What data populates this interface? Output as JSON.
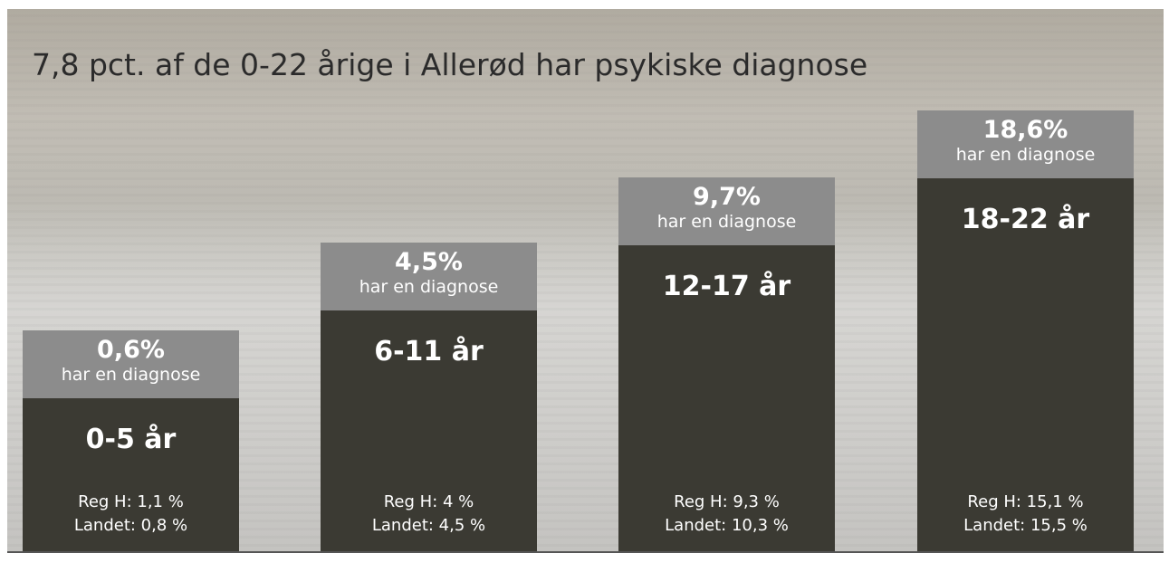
{
  "title": "7,8 pct. af de 0-22 årige i Allerød har psykiske diagnose",
  "groups": [
    {
      "share": "0,6%",
      "caption": "har en diagnose",
      "age": "0-5 år",
      "region": "Reg H: 1,1 %",
      "country": "Landet:  0,8 %"
    },
    {
      "share": "4,5%",
      "caption": "har en diagnose",
      "age": "6-11 år",
      "region": "Reg H: 4 %",
      "country": "Landet:  4,5 %"
    },
    {
      "share": "9,7%",
      "caption": "har en diagnose",
      "age": "12-17 år",
      "region": "Reg H: 9,3 %",
      "country": "Landet:  10,3 %"
    },
    {
      "share": "18,6%",
      "caption": "har en diagnose",
      "age": "18-22 år",
      "region": "Reg H: 15,1 %",
      "country": "Landet:  15,5 %"
    }
  ]
}
